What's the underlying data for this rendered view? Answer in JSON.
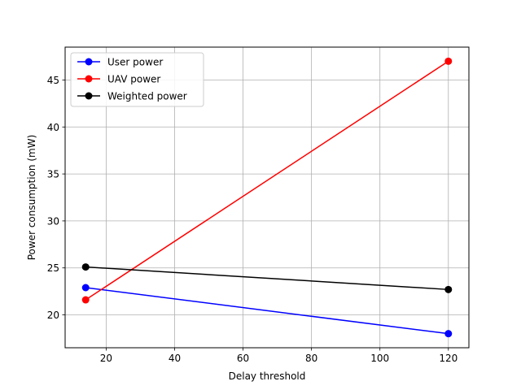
{
  "chart_data": {
    "type": "line",
    "title": "",
    "xlabel": "Delay threshold",
    "ylabel": "Power consumption (mW)",
    "xlim": [
      8,
      126
    ],
    "ylim": [
      16.5,
      48.5
    ],
    "xticks": [
      20,
      40,
      60,
      80,
      100,
      120
    ],
    "yticks": [
      20,
      25,
      30,
      35,
      40,
      45
    ],
    "grid": true,
    "legend_position": "top-left",
    "series": [
      {
        "name": "User power",
        "color": "#0000ff",
        "x": [
          14,
          120
        ],
        "y": [
          22.9,
          18.0
        ]
      },
      {
        "name": "UAV power",
        "color": "#ff0000",
        "x": [
          14,
          120
        ],
        "y": [
          21.6,
          47.0
        ]
      },
      {
        "name": "Weighted power",
        "color": "#000000",
        "x": [
          14,
          120
        ],
        "y": [
          25.1,
          22.7
        ]
      }
    ]
  }
}
